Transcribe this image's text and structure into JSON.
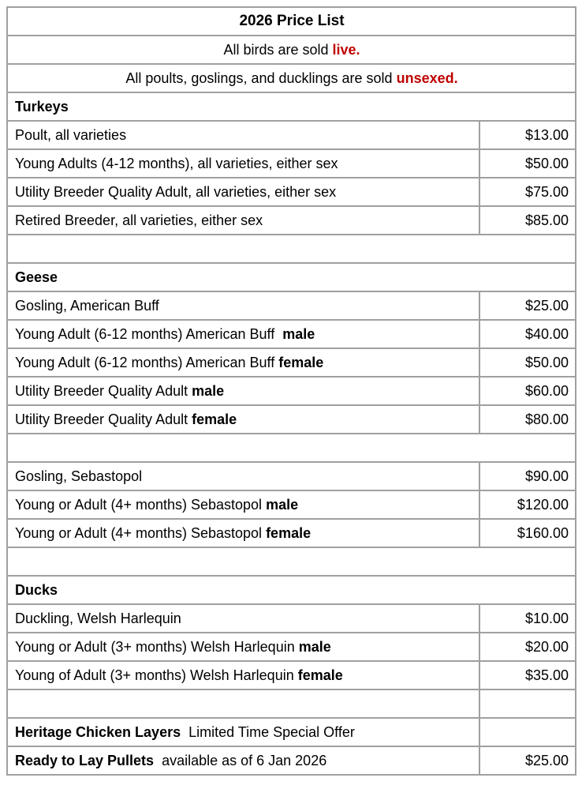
{
  "colors": {
    "accent_red": "#c00000",
    "border_gray": "#a0a0a0",
    "text_black": "#000000"
  },
  "table": {
    "rows": [
      {
        "kind": "title",
        "name": "table-title",
        "parts": [
          {
            "text": "2026 Price List",
            "bold": true
          }
        ]
      },
      {
        "kind": "notice",
        "name": "notice-sold-live",
        "parts": [
          {
            "text": "All birds are sold "
          },
          {
            "text": "live.",
            "bold": true,
            "color": "accent_red"
          }
        ]
      },
      {
        "kind": "notice",
        "name": "notice-sold-unsexed",
        "parts": [
          {
            "text": "All poults, goslings, and ducklings are sold "
          },
          {
            "text": "unsexed.",
            "bold": true,
            "color": "accent_red"
          }
        ]
      },
      {
        "kind": "section",
        "name": "section-turkeys",
        "parts": [
          {
            "text": "Turkeys",
            "bold": true
          }
        ]
      },
      {
        "kind": "item",
        "name": "row-turkey-poult",
        "parts": [
          {
            "text": "Poult, all varieties"
          }
        ],
        "price": "$13.00"
      },
      {
        "kind": "item",
        "name": "row-turkey-young-adult",
        "parts": [
          {
            "text": "Young Adults (4-12 months), all varieties, either sex"
          }
        ],
        "price": "$50.00"
      },
      {
        "kind": "item",
        "name": "row-turkey-utility",
        "parts": [
          {
            "text": "Utility Breeder Quality Adult, all varieties, either sex"
          }
        ],
        "price": "$75.00"
      },
      {
        "kind": "item",
        "name": "row-turkey-retired",
        "parts": [
          {
            "text": "Retired Breeder, all varieties, either sex"
          }
        ],
        "price": "$85.00"
      },
      {
        "kind": "spacer",
        "name": "spacer-row"
      },
      {
        "kind": "section",
        "name": "section-geese",
        "parts": [
          {
            "text": "Geese",
            "bold": true
          }
        ]
      },
      {
        "kind": "item",
        "name": "row-gosling-ambuff",
        "parts": [
          {
            "text": "Gosling, American Buff"
          }
        ],
        "price": "$25.00"
      },
      {
        "kind": "item",
        "name": "row-ambuff-young-male",
        "parts": [
          {
            "text": "Young Adult (6-12 months) American Buff  "
          },
          {
            "text": "male",
            "bold": true
          }
        ],
        "price": "$40.00"
      },
      {
        "kind": "item",
        "name": "row-ambuff-young-female",
        "parts": [
          {
            "text": "Young Adult (6-12 months) American Buff "
          },
          {
            "text": "female",
            "bold": true
          }
        ],
        "price": "$50.00"
      },
      {
        "kind": "item",
        "name": "row-ambuff-utility-male",
        "parts": [
          {
            "text": "Utility Breeder Quality Adult "
          },
          {
            "text": "male",
            "bold": true
          }
        ],
        "price": "$60.00"
      },
      {
        "kind": "item",
        "name": "row-ambuff-utility-female",
        "parts": [
          {
            "text": "Utility Breeder Quality Adult "
          },
          {
            "text": "female",
            "bold": true
          }
        ],
        "price": "$80.00"
      },
      {
        "kind": "spacer",
        "name": "spacer-row"
      },
      {
        "kind": "item",
        "name": "row-gosling-sebastopol",
        "parts": [
          {
            "text": "Gosling, Sebastopol"
          }
        ],
        "price": "$90.00"
      },
      {
        "kind": "item",
        "name": "row-sebastopol-male",
        "parts": [
          {
            "text": "Young or Adult (4+ months) Sebastopol "
          },
          {
            "text": "male",
            "bold": true
          }
        ],
        "price": "$120.00"
      },
      {
        "kind": "item",
        "name": "row-sebastopol-female",
        "parts": [
          {
            "text": "Young or Adult (4+ months) Sebastopol "
          },
          {
            "text": "female",
            "bold": true
          }
        ],
        "price": "$160.00"
      },
      {
        "kind": "spacer",
        "name": "spacer-row"
      },
      {
        "kind": "section",
        "name": "section-ducks",
        "parts": [
          {
            "text": "Ducks",
            "bold": true
          }
        ]
      },
      {
        "kind": "item",
        "name": "row-duckling-welsh",
        "parts": [
          {
            "text": "Duckling, Welsh Harlequin"
          }
        ],
        "price": "$10.00"
      },
      {
        "kind": "item",
        "name": "row-welsh-male",
        "parts": [
          {
            "text": "Young or Adult (3+ months) Welsh Harlequin "
          },
          {
            "text": "male",
            "bold": true
          }
        ],
        "price": "$20.00"
      },
      {
        "kind": "item",
        "name": "row-welsh-female",
        "parts": [
          {
            "text": "Young of Adult (3+ months) Welsh Harlequin "
          },
          {
            "text": "female",
            "bold": true
          }
        ],
        "price": "$35.00"
      },
      {
        "kind": "spacer-split",
        "name": "spacer-row-split"
      },
      {
        "kind": "item",
        "name": "row-heritage-chicken-offer",
        "parts": [
          {
            "text": "Heritage Chicken Layers",
            "bold": true
          },
          {
            "text": "  Limited Time Special Offer"
          }
        ],
        "price": ""
      },
      {
        "kind": "item",
        "name": "row-ready-to-lay-pullets",
        "parts": [
          {
            "text": "Ready to Lay Pullets",
            "bold": true
          },
          {
            "text": "  available as of 6 Jan 2026"
          }
        ],
        "price": "$25.00"
      }
    ]
  }
}
